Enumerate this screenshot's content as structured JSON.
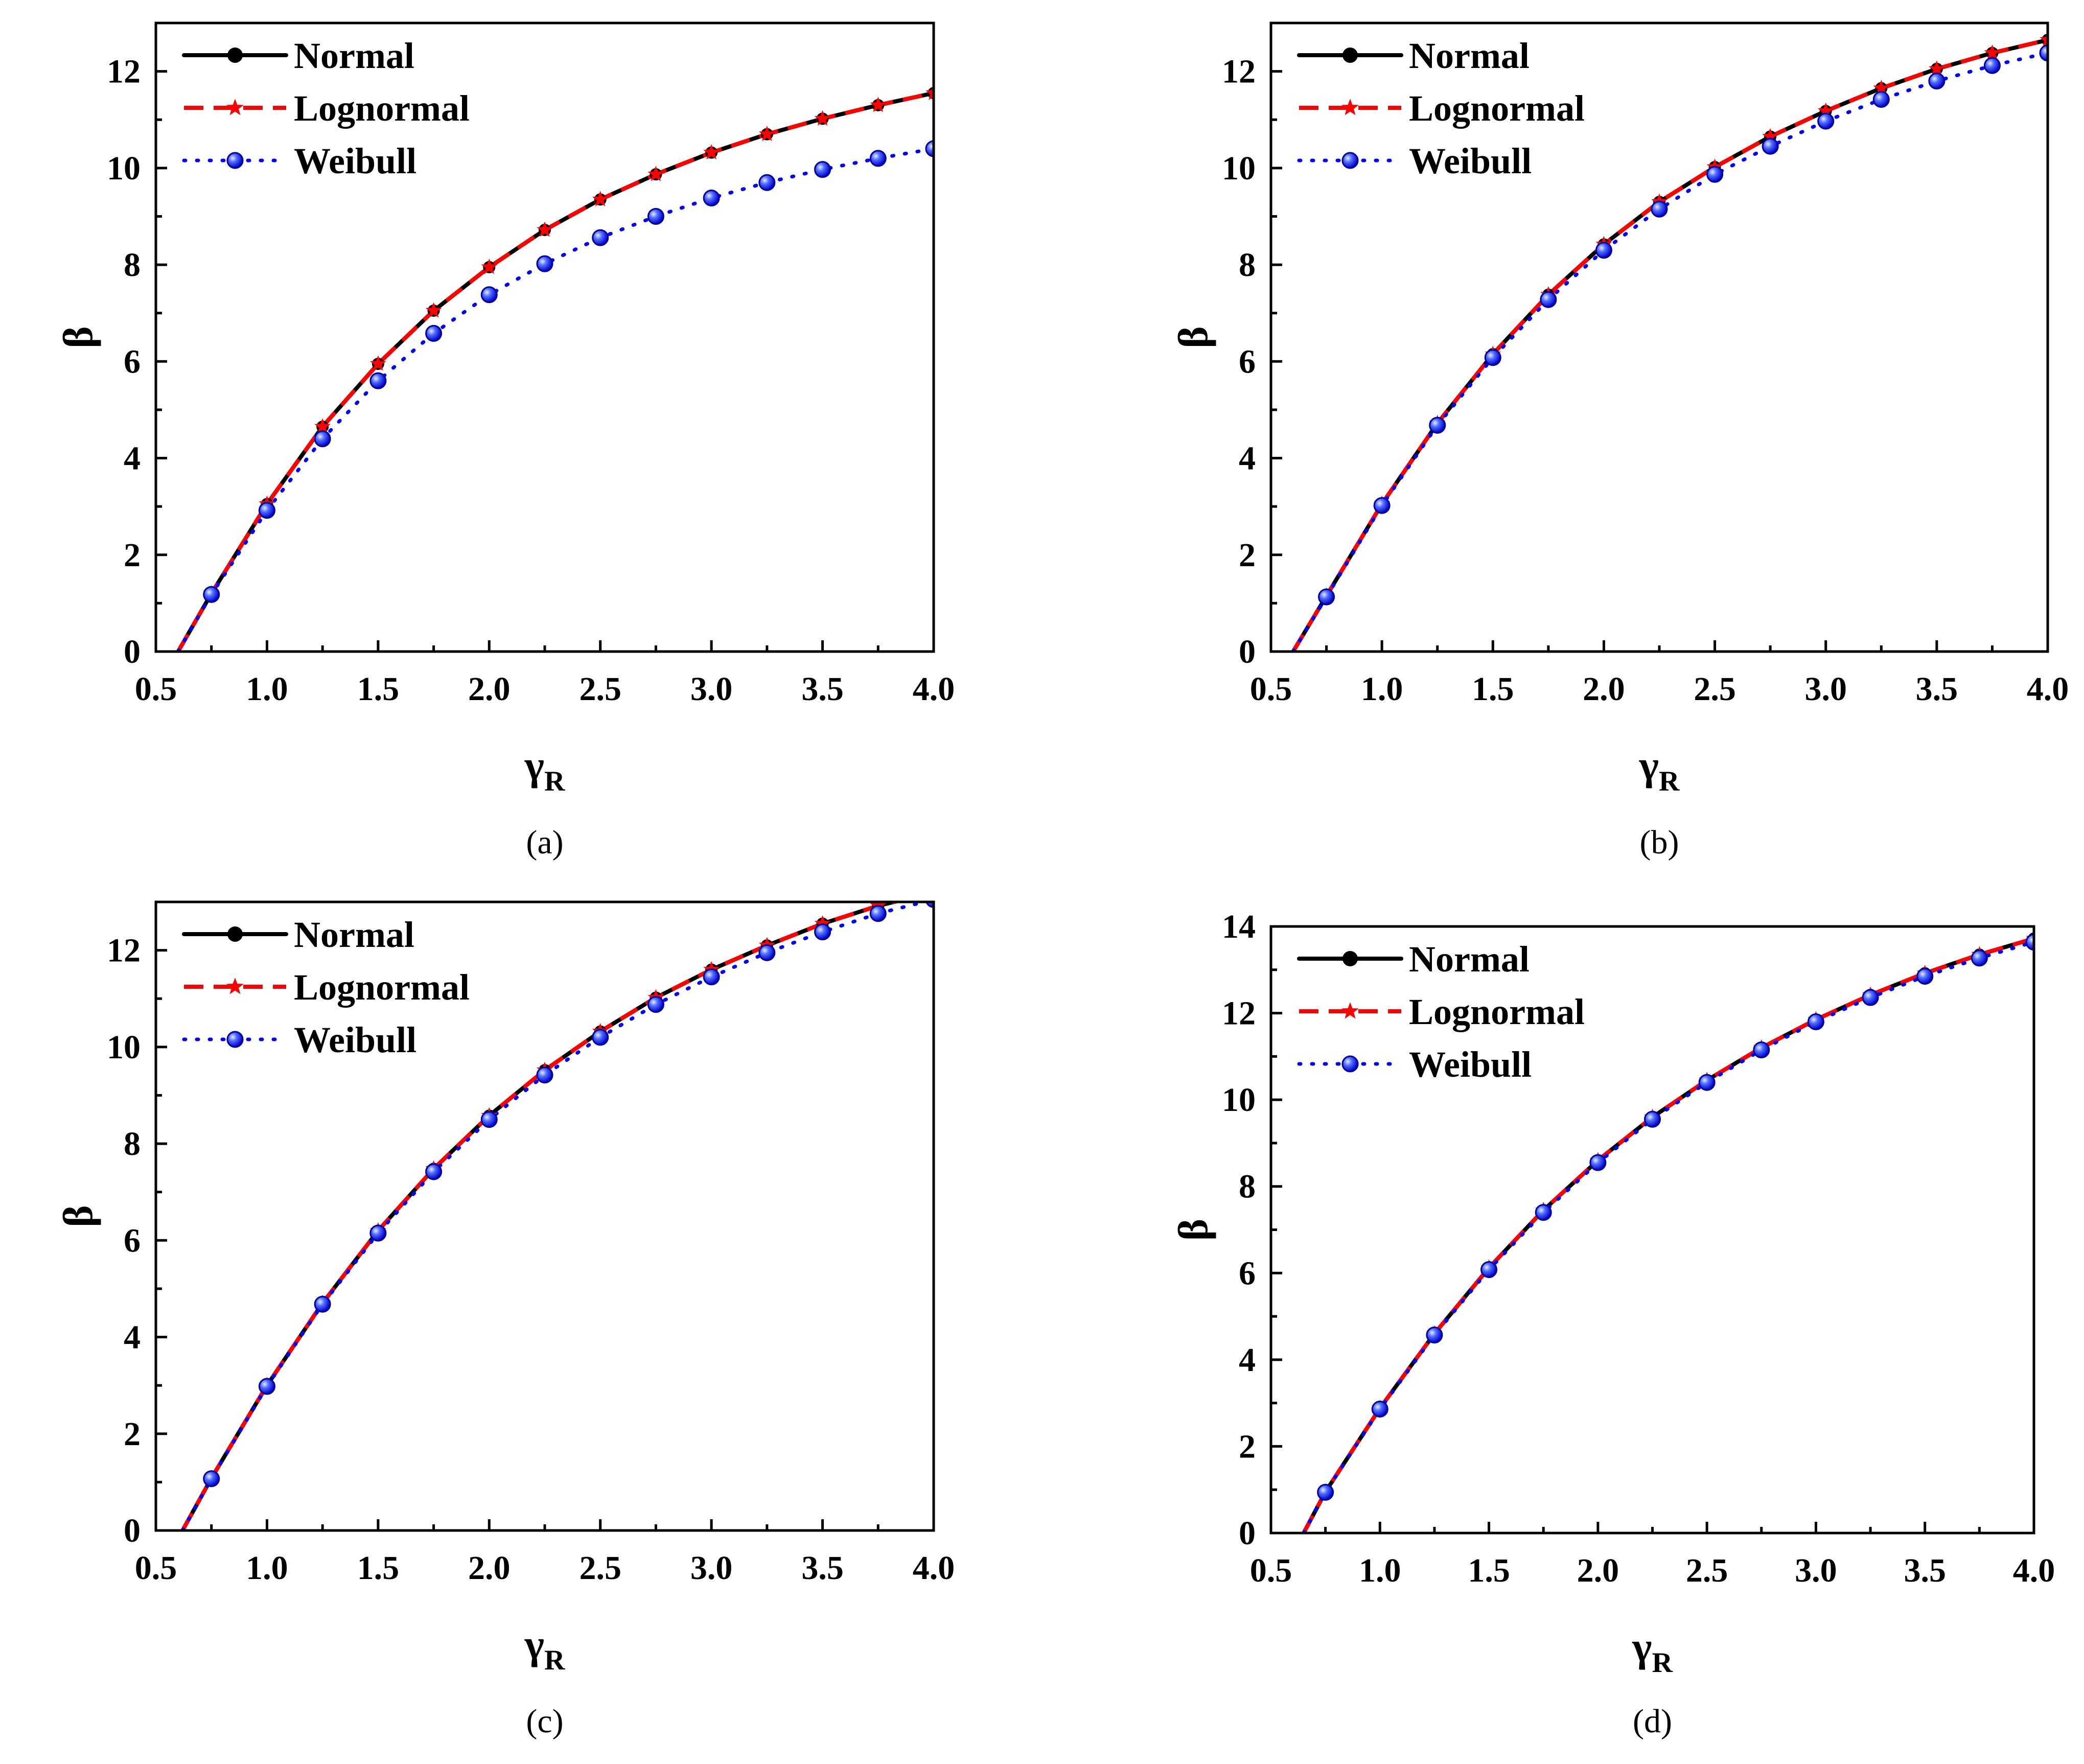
{
  "chart_data": [
    {
      "id": "a",
      "type": "line",
      "panel_label": "(a)",
      "xlabel": "γ",
      "xlabel_sub": "R",
      "ylabel": "β",
      "xlim": [
        0.5,
        4.0
      ],
      "ylim": [
        0,
        13
      ],
      "xticks": [
        "0.5",
        "1.0",
        "1.5",
        "2.0",
        "2.5",
        "3.0",
        "3.5",
        "4.0"
      ],
      "yticks": [
        "0",
        "2",
        "4",
        "6",
        "8",
        "10",
        "12"
      ],
      "legend_position": "top-left",
      "series": [
        {
          "name": "Normal",
          "color": "#000000",
          "style": "solid",
          "marker": "circle",
          "x": [
            0.6,
            0.75,
            1.0,
            1.25,
            1.5,
            1.75,
            2.0,
            2.25,
            2.5,
            2.75,
            3.0,
            3.25,
            3.5,
            3.75,
            4.0
          ],
          "y": [
            0,
            1.2,
            3.05,
            4.65,
            5.95,
            7.05,
            7.95,
            8.72,
            9.35,
            9.87,
            10.32,
            10.7,
            11.02,
            11.3,
            11.55
          ]
        },
        {
          "name": "Lognormal",
          "color": "#ff0000",
          "style": "dashed",
          "marker": "star",
          "x": [
            0.6,
            0.75,
            1.0,
            1.25,
            1.5,
            1.75,
            2.0,
            2.25,
            2.5,
            2.75,
            3.0,
            3.25,
            3.5,
            3.75,
            4.0
          ],
          "y": [
            0,
            1.2,
            3.05,
            4.65,
            5.95,
            7.05,
            7.95,
            8.72,
            9.35,
            9.87,
            10.32,
            10.7,
            11.02,
            11.3,
            11.55
          ]
        },
        {
          "name": "Weibull",
          "color": "#0000ff",
          "style": "dotted",
          "marker": "circle",
          "x": [
            0.6,
            0.75,
            1.0,
            1.25,
            1.5,
            1.75,
            2.0,
            2.25,
            2.5,
            2.75,
            3.0,
            3.25,
            3.5,
            3.75,
            4.0
          ],
          "y": [
            0,
            1.18,
            2.92,
            4.4,
            5.6,
            6.58,
            7.38,
            8.02,
            8.56,
            9.0,
            9.38,
            9.7,
            9.97,
            10.2,
            10.4
          ]
        }
      ]
    },
    {
      "id": "b",
      "type": "line",
      "panel_label": "(b)",
      "xlabel": "γ",
      "xlabel_sub": "R",
      "ylabel": "β",
      "xlim": [
        0.5,
        4.0
      ],
      "ylim": [
        0,
        13
      ],
      "xticks": [
        "0.5",
        "1.0",
        "1.5",
        "2.0",
        "2.5",
        "3.0",
        "3.5",
        "4.0"
      ],
      "yticks": [
        "0",
        "2",
        "4",
        "6",
        "8",
        "10",
        "12"
      ],
      "legend_position": "top-left",
      "series": [
        {
          "name": "Normal",
          "color": "#000000",
          "style": "solid",
          "marker": "circle",
          "x": [
            0.6,
            0.75,
            1.0,
            1.25,
            1.5,
            1.75,
            2.0,
            2.25,
            2.5,
            2.75,
            3.0,
            3.25,
            3.5,
            3.75,
            4.0
          ],
          "y": [
            0,
            1.15,
            3.05,
            4.72,
            6.15,
            7.38,
            8.42,
            9.3,
            10.02,
            10.65,
            11.18,
            11.65,
            12.05,
            12.38,
            12.65
          ]
        },
        {
          "name": "Lognormal",
          "color": "#ff0000",
          "style": "dashed",
          "marker": "star",
          "x": [
            0.6,
            0.75,
            1.0,
            1.25,
            1.5,
            1.75,
            2.0,
            2.25,
            2.5,
            2.75,
            3.0,
            3.25,
            3.5,
            3.75,
            4.0
          ],
          "y": [
            0,
            1.15,
            3.05,
            4.72,
            6.15,
            7.38,
            8.42,
            9.3,
            10.02,
            10.65,
            11.18,
            11.65,
            12.05,
            12.38,
            12.65
          ]
        },
        {
          "name": "Weibull",
          "color": "#0000ff",
          "style": "dotted",
          "marker": "circle",
          "x": [
            0.6,
            0.75,
            1.0,
            1.25,
            1.5,
            1.75,
            2.0,
            2.25,
            2.5,
            2.75,
            3.0,
            3.25,
            3.5,
            3.75,
            4.0
          ],
          "y": [
            0,
            1.13,
            3.02,
            4.68,
            6.08,
            7.28,
            8.3,
            9.15,
            9.87,
            10.45,
            10.97,
            11.42,
            11.8,
            12.12,
            12.38
          ]
        }
      ]
    },
    {
      "id": "c",
      "type": "line",
      "panel_label": "(c)",
      "xlabel": "γ",
      "xlabel_sub": "R",
      "ylabel": "β",
      "xlim": [
        0.5,
        4.0
      ],
      "ylim": [
        0,
        13
      ],
      "xticks": [
        "0.5",
        "1.0",
        "1.5",
        "2.0",
        "2.5",
        "3.0",
        "3.5",
        "4.0"
      ],
      "yticks": [
        "0",
        "2",
        "4",
        "6",
        "8",
        "10",
        "12"
      ],
      "legend_position": "top-left",
      "series": [
        {
          "name": "Normal",
          "color": "#000000",
          "style": "solid",
          "marker": "circle",
          "x": [
            0.62,
            0.75,
            1.0,
            1.25,
            1.5,
            1.75,
            2.0,
            2.25,
            2.5,
            2.75,
            3.0,
            3.25,
            3.5,
            3.75,
            4.0
          ],
          "y": [
            0,
            1.08,
            3.0,
            4.7,
            6.2,
            7.48,
            8.58,
            9.52,
            10.32,
            11.02,
            11.6,
            12.1,
            12.55,
            12.92,
            13.2
          ]
        },
        {
          "name": "Lognormal",
          "color": "#ff0000",
          "style": "dashed",
          "marker": "star",
          "x": [
            0.62,
            0.75,
            1.0,
            1.25,
            1.5,
            1.75,
            2.0,
            2.25,
            2.5,
            2.75,
            3.0,
            3.25,
            3.5,
            3.75,
            4.0
          ],
          "y": [
            0,
            1.08,
            3.0,
            4.7,
            6.2,
            7.48,
            8.58,
            9.52,
            10.32,
            11.02,
            11.6,
            12.1,
            12.55,
            12.92,
            13.2
          ]
        },
        {
          "name": "Weibull",
          "color": "#0000ff",
          "style": "dotted",
          "marker": "circle",
          "x": [
            0.62,
            0.75,
            1.0,
            1.25,
            1.5,
            1.75,
            2.0,
            2.25,
            2.5,
            2.75,
            3.0,
            3.25,
            3.5,
            3.75,
            4.0
          ],
          "y": [
            0,
            1.07,
            2.98,
            4.68,
            6.15,
            7.42,
            8.5,
            9.42,
            10.2,
            10.88,
            11.45,
            11.95,
            12.38,
            12.76,
            13.05
          ]
        }
      ]
    },
    {
      "id": "d",
      "type": "line",
      "panel_label": "(d)",
      "xlabel": "γ",
      "xlabel_sub": "R",
      "ylabel": "β",
      "xlim": [
        0.5,
        4.0
      ],
      "ylim": [
        0,
        14
      ],
      "xticks": [
        "0.5",
        "1.0",
        "1.5",
        "2.0",
        "2.5",
        "3.0",
        "3.5",
        "4.0"
      ],
      "yticks": [
        "0",
        "2",
        "4",
        "6",
        "8",
        "10",
        "12",
        "14"
      ],
      "legend_position": "top-left",
      "series": [
        {
          "name": "Normal",
          "color": "#000000",
          "style": "solid",
          "marker": "circle",
          "x": [
            0.65,
            0.75,
            1.0,
            1.25,
            1.5,
            1.75,
            2.0,
            2.25,
            2.5,
            2.75,
            3.0,
            3.25,
            3.5,
            3.75,
            4.0
          ],
          "y": [
            0,
            0.95,
            2.88,
            4.6,
            6.12,
            7.45,
            8.6,
            9.6,
            10.45,
            11.2,
            11.85,
            12.42,
            12.92,
            13.35,
            13.72
          ]
        },
        {
          "name": "Lognormal",
          "color": "#ff0000",
          "style": "dashed",
          "marker": "star",
          "x": [
            0.65,
            0.75,
            1.0,
            1.25,
            1.5,
            1.75,
            2.0,
            2.25,
            2.5,
            2.75,
            3.0,
            3.25,
            3.5,
            3.75,
            4.0
          ],
          "y": [
            0,
            0.95,
            2.88,
            4.6,
            6.12,
            7.45,
            8.6,
            9.6,
            10.45,
            11.2,
            11.85,
            12.42,
            12.92,
            13.35,
            13.72
          ]
        },
        {
          "name": "Weibull",
          "color": "#0000ff",
          "style": "dotted",
          "marker": "circle",
          "x": [
            0.65,
            0.75,
            1.0,
            1.25,
            1.5,
            1.75,
            2.0,
            2.25,
            2.5,
            2.75,
            3.0,
            3.25,
            3.5,
            3.75,
            4.0
          ],
          "y": [
            0,
            0.94,
            2.86,
            4.57,
            6.08,
            7.4,
            8.55,
            9.55,
            10.4,
            11.15,
            11.8,
            12.36,
            12.85,
            13.27,
            13.64
          ]
        }
      ]
    }
  ]
}
